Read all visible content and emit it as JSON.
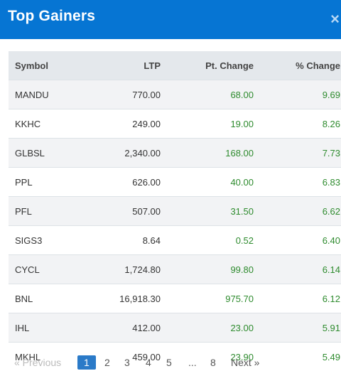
{
  "header": {
    "title": "Top Gainers",
    "close_glyph": "×"
  },
  "table": {
    "columns": [
      "Symbol",
      "LTP",
      "Pt. Change",
      "% Change"
    ],
    "rows": [
      {
        "symbol": "MANDU",
        "ltp": "770.00",
        "pt": "68.00",
        "pct": "9.69"
      },
      {
        "symbol": "KKHC",
        "ltp": "249.00",
        "pt": "19.00",
        "pct": "8.26"
      },
      {
        "symbol": "GLBSL",
        "ltp": "2,340.00",
        "pt": "168.00",
        "pct": "7.73"
      },
      {
        "symbol": "PPL",
        "ltp": "626.00",
        "pt": "40.00",
        "pct": "6.83"
      },
      {
        "symbol": "PFL",
        "ltp": "507.00",
        "pt": "31.50",
        "pct": "6.62"
      },
      {
        "symbol": "SIGS3",
        "ltp": "8.64",
        "pt": "0.52",
        "pct": "6.40"
      },
      {
        "symbol": "CYCL",
        "ltp": "1,724.80",
        "pt": "99.80",
        "pct": "6.14"
      },
      {
        "symbol": "BNL",
        "ltp": "16,918.30",
        "pt": "975.70",
        "pct": "6.12"
      },
      {
        "symbol": "IHL",
        "ltp": "412.00",
        "pt": "23.00",
        "pct": "5.91"
      },
      {
        "symbol": "MKHL",
        "ltp": "459.00",
        "pt": "23.90",
        "pct": "5.49"
      }
    ]
  },
  "pagination": {
    "previous": "« Previous",
    "pages": [
      "1",
      "2",
      "3",
      "4",
      "5",
      "...",
      "8"
    ],
    "next": "Next »"
  },
  "colors": {
    "header_bg": "#0675d3",
    "positive": "#2e8b2e",
    "active_page": "#2a7ac8"
  }
}
